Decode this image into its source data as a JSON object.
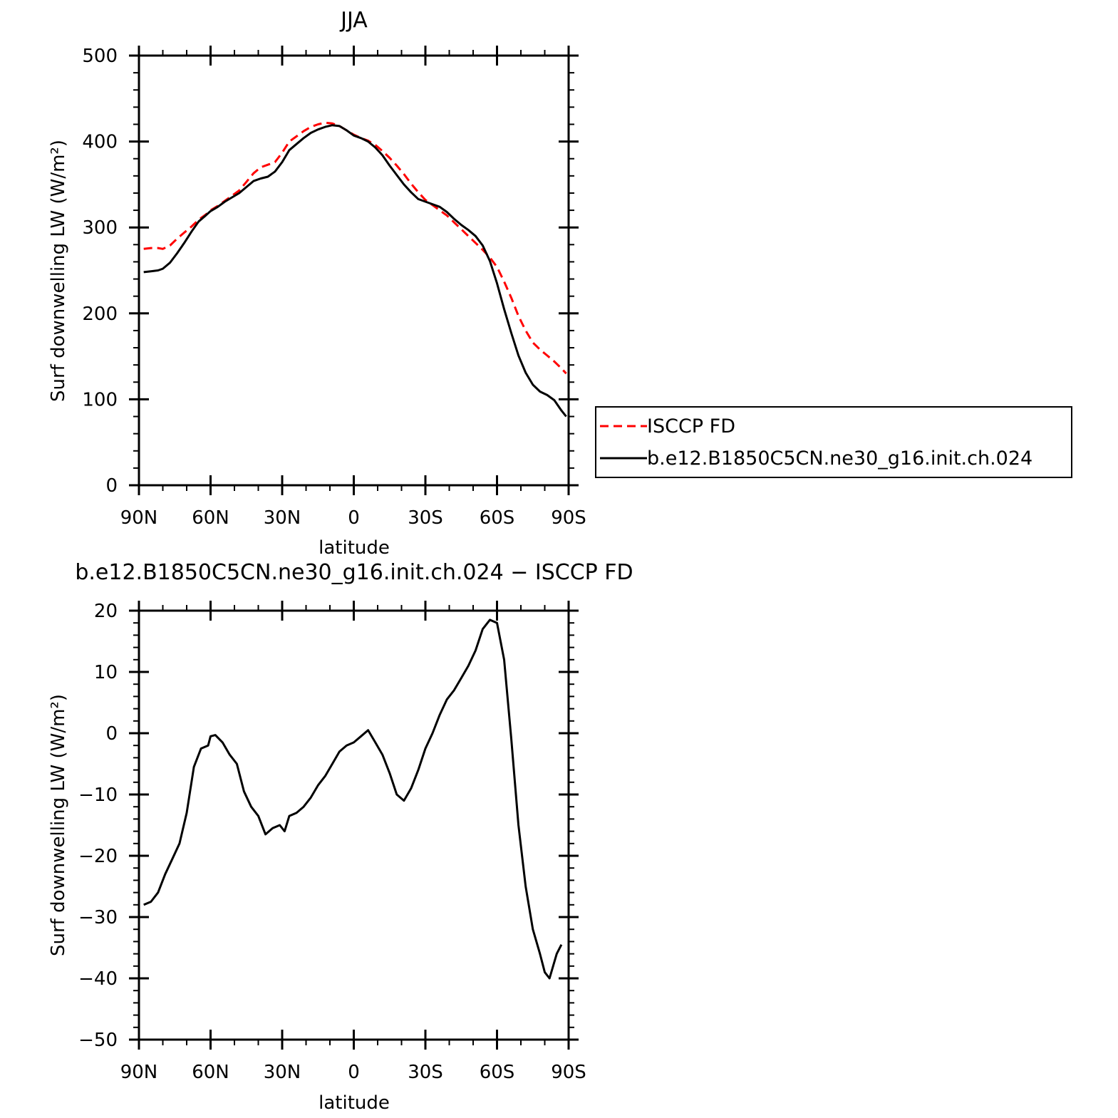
{
  "chart_data": [
    {
      "type": "line",
      "title": "JJA",
      "xlabel": "latitude",
      "ylabel": "Surf downwelling LW (W/m²)",
      "ylim": [
        0,
        500
      ],
      "yticks": [
        0,
        100,
        200,
        300,
        400,
        500
      ],
      "xlim": [
        90,
        -90
      ],
      "xticks": [
        90,
        60,
        30,
        0,
        -30,
        -60,
        -90
      ],
      "xtick_labels": [
        "90N",
        "60N",
        "30N",
        "0",
        "30S",
        "60S",
        "90S"
      ],
      "grid": false,
      "legend": {
        "placement": "right-outside",
        "entries": [
          "ISCCP FD",
          "b.e12.B1850C5CN.ne30_g16.init.ch.024"
        ]
      },
      "series": [
        {
          "name": "ISCCP FD",
          "color": "#ff0000",
          "dash": "dashed",
          "x": [
            88,
            85,
            82,
            80,
            77,
            74,
            71,
            68,
            65,
            62,
            60,
            57,
            54,
            51,
            48,
            45,
            42,
            39,
            36,
            33,
            30,
            27,
            24,
            21,
            18,
            15,
            12,
            9,
            6,
            3,
            0,
            -3,
            -6,
            -9,
            -12,
            -15,
            -18,
            -21,
            -24,
            -27,
            -30,
            -33,
            -36,
            -39,
            -42,
            -45,
            -48,
            -51,
            -54,
            -57,
            -60,
            -63,
            -66,
            -69,
            -72,
            -75,
            -78,
            -81,
            -84,
            -87,
            -89
          ],
          "y": [
            275,
            276,
            276,
            275,
            279,
            287,
            294,
            301,
            309,
            315,
            320,
            325,
            331,
            337,
            343,
            353,
            363,
            370,
            373,
            376,
            387,
            400,
            406,
            412,
            417,
            420,
            422,
            421,
            418,
            413,
            408,
            404,
            401,
            396,
            389,
            381,
            372,
            362,
            351,
            341,
            332,
            326,
            320,
            314,
            306,
            298,
            290,
            282,
            274,
            265,
            254,
            237,
            218,
            197,
            180,
            166,
            158,
            151,
            144,
            136,
            130
          ]
        },
        {
          "name": "b.e12.B1850C5CN.ne30_g16.init.ch.024",
          "color": "#000000",
          "dash": "solid",
          "x": [
            88,
            85,
            82,
            80,
            77,
            74,
            71,
            68,
            65,
            62,
            60,
            57,
            54,
            51,
            48,
            45,
            42,
            39,
            36,
            33,
            30,
            27,
            24,
            21,
            18,
            15,
            12,
            9,
            6,
            3,
            0,
            -3,
            -6,
            -9,
            -12,
            -15,
            -18,
            -21,
            -24,
            -27,
            -30,
            -33,
            -36,
            -39,
            -42,
            -45,
            -48,
            -51,
            -54,
            -57,
            -60,
            -63,
            -66,
            -69,
            -72,
            -75,
            -78,
            -81,
            -84,
            -87,
            -89
          ],
          "y": [
            248,
            249,
            250,
            252,
            259,
            270,
            282,
            295,
            307,
            314,
            319,
            324,
            330,
            335,
            340,
            347,
            354,
            357,
            359,
            365,
            376,
            390,
            397,
            404,
            410,
            414,
            417,
            419,
            418,
            413,
            407,
            404,
            400,
            393,
            384,
            372,
            361,
            350,
            341,
            333,
            330,
            327,
            324,
            318,
            310,
            303,
            297,
            290,
            279,
            261,
            235,
            205,
            177,
            151,
            131,
            117,
            109,
            105,
            99,
            87,
            80
          ]
        }
      ]
    },
    {
      "type": "line",
      "title": "b.e12.B1850C5CN.ne30_g16.init.ch.024 − ISCCP FD",
      "xlabel": "latitude",
      "ylabel": "Surf downwelling LW (W/m²)",
      "ylim": [
        -50,
        20
      ],
      "yticks": [
        -50,
        -40,
        -30,
        -20,
        -10,
        0,
        10,
        20
      ],
      "ytick_labels": [
        "−50",
        "−40",
        "−30",
        "−20",
        "−10",
        "0",
        "10",
        "20"
      ],
      "xlim": [
        90,
        -90
      ],
      "xticks": [
        90,
        60,
        30,
        0,
        -30,
        -60,
        -90
      ],
      "xtick_labels": [
        "90N",
        "60N",
        "30N",
        "0",
        "30S",
        "60S",
        "90S"
      ],
      "grid": false,
      "series": [
        {
          "name": "",
          "color": "#000000",
          "dash": "solid",
          "x": [
            88,
            85,
            82,
            79,
            76,
            73,
            70,
            67,
            64,
            61,
            60,
            58,
            55,
            52,
            49,
            46,
            43,
            40,
            37,
            34,
            31,
            29,
            27,
            24,
            21,
            18,
            15,
            12,
            9,
            6,
            3,
            0,
            -3,
            -6,
            -9,
            -12,
            -15,
            -18,
            -21,
            -24,
            -27,
            -30,
            -33,
            -36,
            -39,
            -42,
            -45,
            -48,
            -51,
            -54,
            -57,
            -60,
            -63,
            -66,
            -69,
            -72,
            -75,
            -78,
            -80,
            -82,
            -85,
            -87
          ],
          "y": [
            -28,
            -27.5,
            -26,
            -23,
            -20.5,
            -18,
            -13,
            -5.5,
            -2.5,
            -2,
            -0.5,
            -0.3,
            -1.5,
            -3.5,
            -5,
            -9.5,
            -12,
            -13.5,
            -16.5,
            -15.5,
            -15,
            -16,
            -13.5,
            -13,
            -12,
            -10.5,
            -8.5,
            -7,
            -5,
            -3,
            -2,
            -1.5,
            -0.5,
            0.5,
            -1.5,
            -3.5,
            -6.5,
            -10,
            -11,
            -9,
            -6,
            -2.5,
            0,
            3,
            5.5,
            7,
            9,
            11,
            13.5,
            17,
            18.5,
            18,
            12,
            -1,
            -15,
            -25,
            -32,
            -36,
            -39,
            -40,
            -36,
            -34.5
          ]
        }
      ]
    }
  ]
}
